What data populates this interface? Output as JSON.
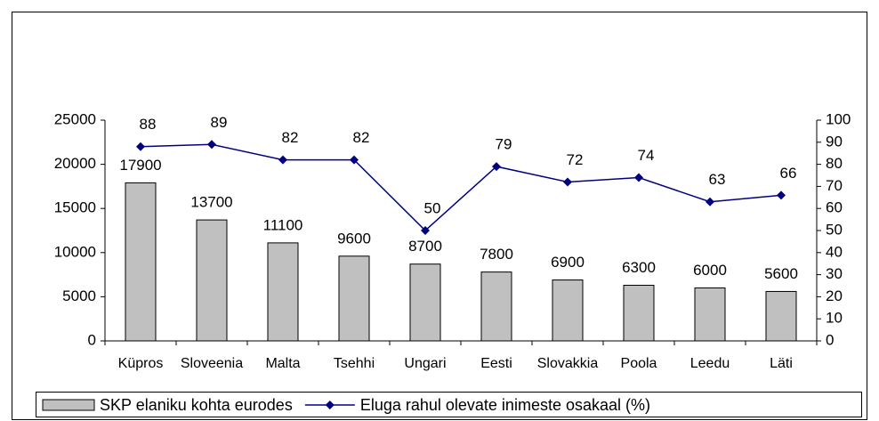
{
  "chart_data": {
    "type": "combo",
    "categories": [
      "Küpros",
      "Sloveenia",
      "Malta",
      "Tsehhi",
      "Ungari",
      "Eesti",
      "Slovakkia",
      "Poola",
      "Leedu",
      "Läti"
    ],
    "series": [
      {
        "name": "SKP elaniku kohta eurodes",
        "type": "bar",
        "color": "#c0c0c0",
        "values": [
          17900,
          13700,
          11100,
          9600,
          8700,
          7800,
          6900,
          6300,
          6000,
          5600
        ]
      },
      {
        "name": "Eluga rahul olevate inimeste osakaal (%)",
        "type": "line",
        "color": "#000080",
        "axis": "y2",
        "values": [
          88,
          89,
          82,
          82,
          50,
          79,
          72,
          74,
          63,
          66
        ]
      }
    ],
    "ylim": [
      0,
      25000
    ],
    "yticks": [
      0,
      5000,
      10000,
      15000,
      20000,
      25000
    ],
    "y2lim": [
      0,
      100
    ],
    "y2ticks": [
      0,
      10,
      20,
      30,
      40,
      50,
      60,
      70,
      80,
      90,
      100
    ],
    "grid": false,
    "legend": "bottom"
  }
}
